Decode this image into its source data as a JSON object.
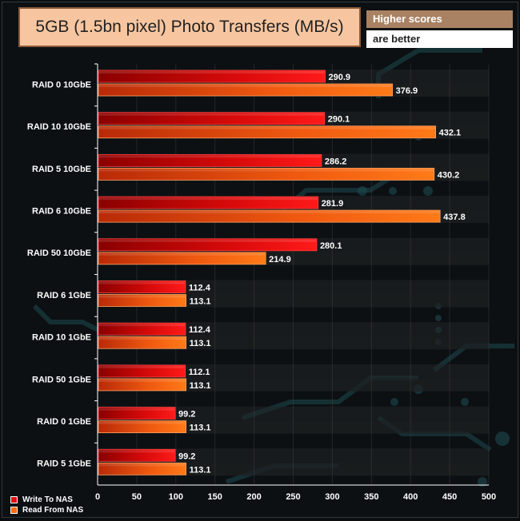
{
  "chart_data": {
    "type": "bar",
    "orientation": "horizontal",
    "title": "5GB (1.5bn pixel) Photo Transfers (MB/s)",
    "note": {
      "line1": "Higher scores",
      "line2": "are better"
    },
    "categories": [
      "RAID 0 10GbE",
      "RAID 10 10GbE",
      "RAID 5 10GbE",
      "RAID 6 10GbE",
      "RAID 50 10GbE",
      "RAID 6 1GbE",
      "RAID 10 1GbE",
      "RAID 50 1GbE",
      "RAID 0 1GbE",
      "RAID 5 1GbE"
    ],
    "series": [
      {
        "name": "Write To NAS",
        "values": [
          290.9,
          290.1,
          286.2,
          281.9,
          280.1,
          112.4,
          112.4,
          112.1,
          99.2,
          99.2
        ],
        "color": "#e01010"
      },
      {
        "name": "Read From NAS",
        "values": [
          376.9,
          432.1,
          430.2,
          437.8,
          214.9,
          113.1,
          113.1,
          113.1,
          113.1,
          113.1
        ],
        "color": "#ff6a10"
      }
    ],
    "x_ticks": [
      "0",
      "50",
      "100",
      "150",
      "200",
      "250",
      "300",
      "350",
      "400",
      "450",
      "500"
    ],
    "xlim": [
      0,
      500
    ],
    "legend": "bottom-left",
    "grid": true
  }
}
